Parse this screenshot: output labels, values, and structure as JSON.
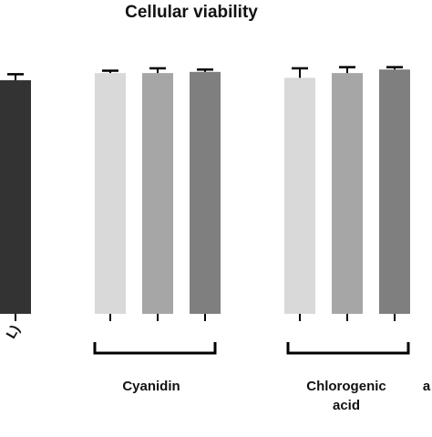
{
  "chart_data": {
    "type": "bar",
    "title": "Cellular viability",
    "xlabel": "",
    "ylabel": "",
    "groups": [
      {
        "label": "",
        "tick_fragment": "L)",
        "bar_count": 1
      },
      {
        "label": "Cyanidin",
        "bar_count": 3
      },
      {
        "label": "Chlorogenic acid",
        "bar_count": 3
      },
      {
        "label": "a",
        "bar_count": 0
      }
    ],
    "bars": [
      {
        "group": 0,
        "value": 98.5,
        "error": 2.5,
        "color": "#333333"
      },
      {
        "group": 1,
        "value": 101.5,
        "error": 1.0,
        "color": "#d9d9d9"
      },
      {
        "group": 1,
        "value": 101.5,
        "error": 2.0,
        "color": "#a6a6a6"
      },
      {
        "group": 1,
        "value": 102.0,
        "error": 1.0,
        "color": "#7f7f7f"
      },
      {
        "group": 2,
        "value": 99.5,
        "error": 4.0,
        "color": "#d9d9d9"
      },
      {
        "group": 2,
        "value": 101.5,
        "error": 2.5,
        "color": "#a6a6a6"
      },
      {
        "group": 2,
        "value": 103.0,
        "error": 1.0,
        "color": "#7f7f7f"
      }
    ],
    "ylim": [
      0,
      115
    ],
    "grid": false,
    "legend": "none"
  }
}
